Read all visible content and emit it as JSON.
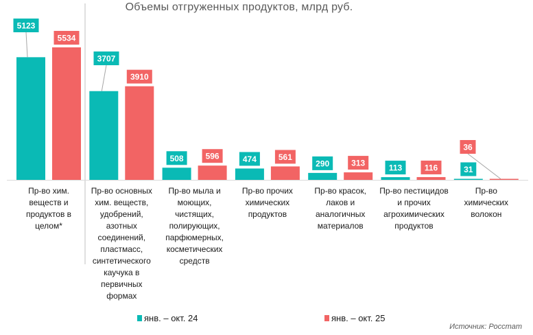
{
  "chart_data": {
    "type": "bar",
    "title": "Объемы отгруженных продуктов, млрд руб.",
    "categories": [
      "Пр-во хим.\nвеществ и\nпродуктов в\nцелом*",
      "Пр-во основных\nхим. веществ,\nудобрений,\nазотных\nсоединений,\nпластмасс,\nсинтетического\nкаучука  в\nпервичных\nформах",
      "Пр-во мыла и\nмоющих,\nчистящих,\nполирующих,\nпарфюмерных,\nкосметических\nсредств",
      "Пр-во прочих\nхимических\nпродуктов",
      "Пр-во красок,\nлаков и\nаналогичных\nматериалов",
      "Пр-во пестицидов\nи прочих\nагрохимических\nпродуктов",
      "Пр-во\nхимических\nволокон"
    ],
    "series": [
      {
        "name": "янв. – окт. 24",
        "color": "#0ABAB5",
        "values": [
          5123,
          3707,
          508,
          474,
          290,
          113,
          31
        ]
      },
      {
        "name": "янв. – окт. 25",
        "color": "#F26464",
        "values": [
          5534,
          3910,
          596,
          561,
          313,
          116,
          36
        ]
      }
    ],
    "ylim": [
      0,
      5534
    ],
    "grid": false,
    "legend": "bottom",
    "source": "Источник: Росстат"
  }
}
